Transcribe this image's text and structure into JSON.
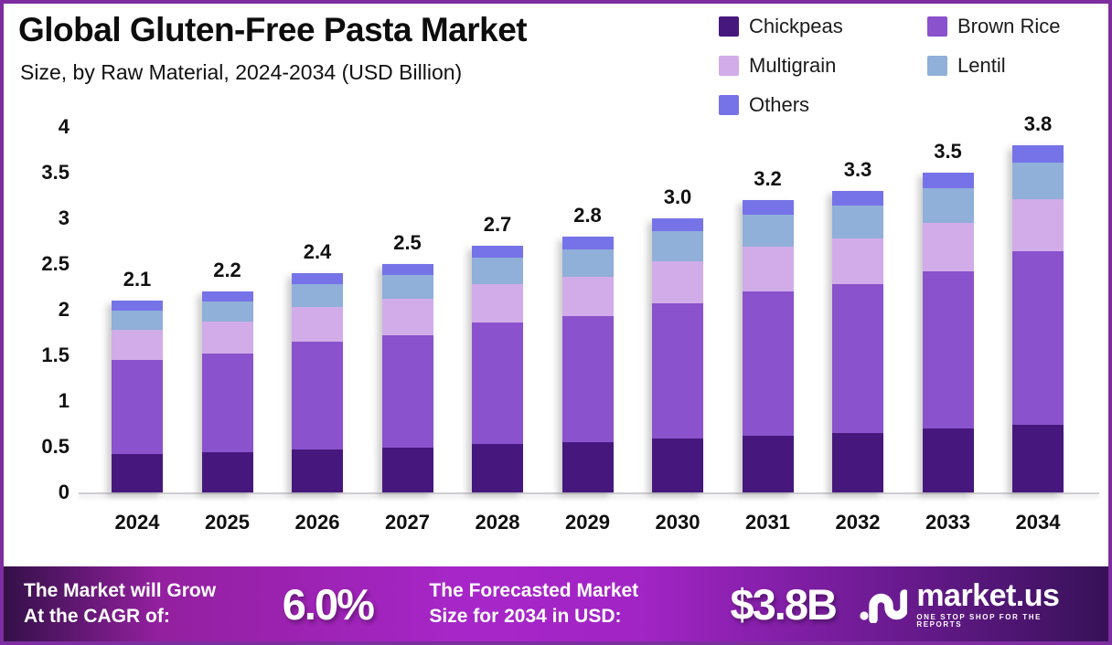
{
  "title": "Global Gluten-Free Pasta Market",
  "subtitle": "Size, by Raw Material, 2024-2034 (USD Billion)",
  "legend": [
    {
      "label": "Chickpeas",
      "color": "#46187d"
    },
    {
      "label": "Brown Rice",
      "color": "#8a52cc"
    },
    {
      "label": "Multigrain",
      "color": "#d2ace9"
    },
    {
      "label": "Lentil",
      "color": "#90afd9"
    },
    {
      "label": "Others",
      "color": "#7673e8"
    }
  ],
  "chart_data": {
    "type": "bar",
    "stacked": true,
    "title": "Global Gluten-Free Pasta Market Size, by Raw Material, 2024-2034 (USD Billion)",
    "categories": [
      "2024",
      "2025",
      "2026",
      "2027",
      "2028",
      "2029",
      "2030",
      "2031",
      "2032",
      "2033",
      "2034"
    ],
    "series": [
      {
        "name": "Chickpeas",
        "color": "#46187d",
        "values": [
          0.42,
          0.44,
          0.47,
          0.49,
          0.53,
          0.55,
          0.59,
          0.62,
          0.65,
          0.7,
          0.74
        ]
      },
      {
        "name": "Brown Rice",
        "color": "#8a52cc",
        "values": [
          1.03,
          1.08,
          1.18,
          1.23,
          1.33,
          1.38,
          1.48,
          1.58,
          1.63,
          1.72,
          1.9
        ]
      },
      {
        "name": "Multigrain",
        "color": "#d2ace9",
        "values": [
          0.33,
          0.35,
          0.38,
          0.4,
          0.42,
          0.43,
          0.46,
          0.49,
          0.5,
          0.53,
          0.57
        ]
      },
      {
        "name": "Lentil",
        "color": "#90afd9",
        "values": [
          0.21,
          0.22,
          0.25,
          0.26,
          0.29,
          0.3,
          0.33,
          0.35,
          0.36,
          0.38,
          0.4
        ]
      },
      {
        "name": "Others",
        "color": "#7673e8",
        "values": [
          0.11,
          0.11,
          0.12,
          0.12,
          0.13,
          0.14,
          0.14,
          0.16,
          0.16,
          0.17,
          0.19
        ]
      }
    ],
    "totals": [
      2.1,
      2.2,
      2.4,
      2.5,
      2.7,
      2.8,
      3.0,
      3.2,
      3.3,
      3.5,
      3.8
    ],
    "totals_labels": [
      "2.1",
      "2.2",
      "2.4",
      "2.5",
      "2.7",
      "2.8",
      "3.0",
      "3.2",
      "3.3",
      "3.5",
      "3.8"
    ],
    "xlabel": "",
    "ylabel": "",
    "ylim": [
      0,
      4
    ],
    "yticks": [
      0,
      0.5,
      1,
      1.5,
      2,
      2.5,
      3,
      3.5,
      4
    ],
    "ytick_labels": [
      "0",
      "0.5",
      "1",
      "1.5",
      "2",
      "2.5",
      "3",
      "3.5",
      "4"
    ],
    "grid": false,
    "legend_position": "top-right"
  },
  "footer": {
    "cagr_label_line1": "The Market will Grow",
    "cagr_label_line2": "At the CAGR of:",
    "cagr_value": "6.0%",
    "forecast_label_line1": "The Forecasted Market",
    "forecast_label_line2": "Size for 2034 in USD:",
    "forecast_value": "$3.8B",
    "brand": "market.us",
    "brand_tagline": "ONE STOP SHOP FOR THE REPORTS"
  }
}
